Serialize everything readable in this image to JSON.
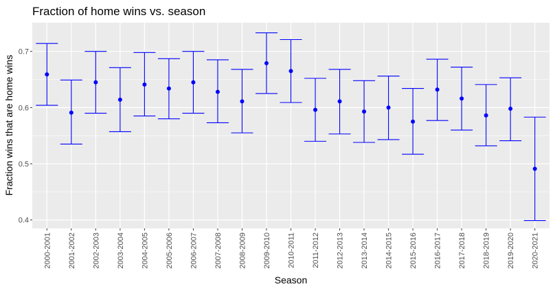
{
  "chart_data": {
    "type": "errorbar",
    "title": "Fraction of home wins vs. season",
    "xlabel": "Season",
    "ylabel": "Fraction wins that are home wins",
    "categories": [
      "2000-2001",
      "2001-2002",
      "2002-2003",
      "2003-2004",
      "2004-2005",
      "2005-2006",
      "2006-2007",
      "2007-2008",
      "2008-2009",
      "2009-2010",
      "2010-2011",
      "2011-2012",
      "2012-2013",
      "2013-2014",
      "2014-2015",
      "2015-2016",
      "2016-2017",
      "2017-2018",
      "2018-2019",
      "2019-2020",
      "2020-2021"
    ],
    "series": [
      {
        "name": "estimate",
        "values": [
          0.659,
          0.591,
          0.645,
          0.614,
          0.641,
          0.634,
          0.645,
          0.628,
          0.611,
          0.679,
          0.665,
          0.596,
          0.611,
          0.593,
          0.6,
          0.575,
          0.632,
          0.616,
          0.586,
          0.598,
          0.491
        ]
      },
      {
        "name": "upper",
        "values": [
          0.714,
          0.649,
          0.7,
          0.671,
          0.698,
          0.687,
          0.7,
          0.685,
          0.668,
          0.733,
          0.721,
          0.652,
          0.668,
          0.648,
          0.656,
          0.634,
          0.686,
          0.672,
          0.641,
          0.653,
          0.583
        ]
      },
      {
        "name": "lower",
        "values": [
          0.604,
          0.535,
          0.59,
          0.557,
          0.585,
          0.58,
          0.59,
          0.573,
          0.555,
          0.625,
          0.609,
          0.54,
          0.553,
          0.538,
          0.543,
          0.517,
          0.577,
          0.56,
          0.532,
          0.541,
          0.399
        ]
      }
    ],
    "yticks": [
      0.4,
      0.5,
      0.6,
      0.7
    ],
    "ytick_labels": [
      "0.4",
      "0.5",
      "0.6",
      "0.7"
    ],
    "ylim": [
      0.385,
      0.751
    ],
    "grid": true,
    "legend": "none",
    "colors": {
      "series": "#0000ff",
      "panel_bg": "#ebebeb",
      "grid": "#ffffff",
      "tick_label": "#4d4d4d"
    }
  }
}
